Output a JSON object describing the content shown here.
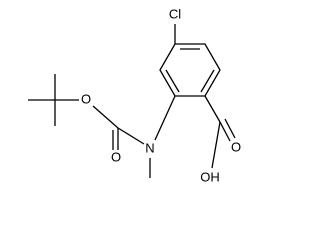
{
  "labels": [
    "Cl",
    "O",
    "O",
    "N",
    "O",
    "OH"
  ]
}
